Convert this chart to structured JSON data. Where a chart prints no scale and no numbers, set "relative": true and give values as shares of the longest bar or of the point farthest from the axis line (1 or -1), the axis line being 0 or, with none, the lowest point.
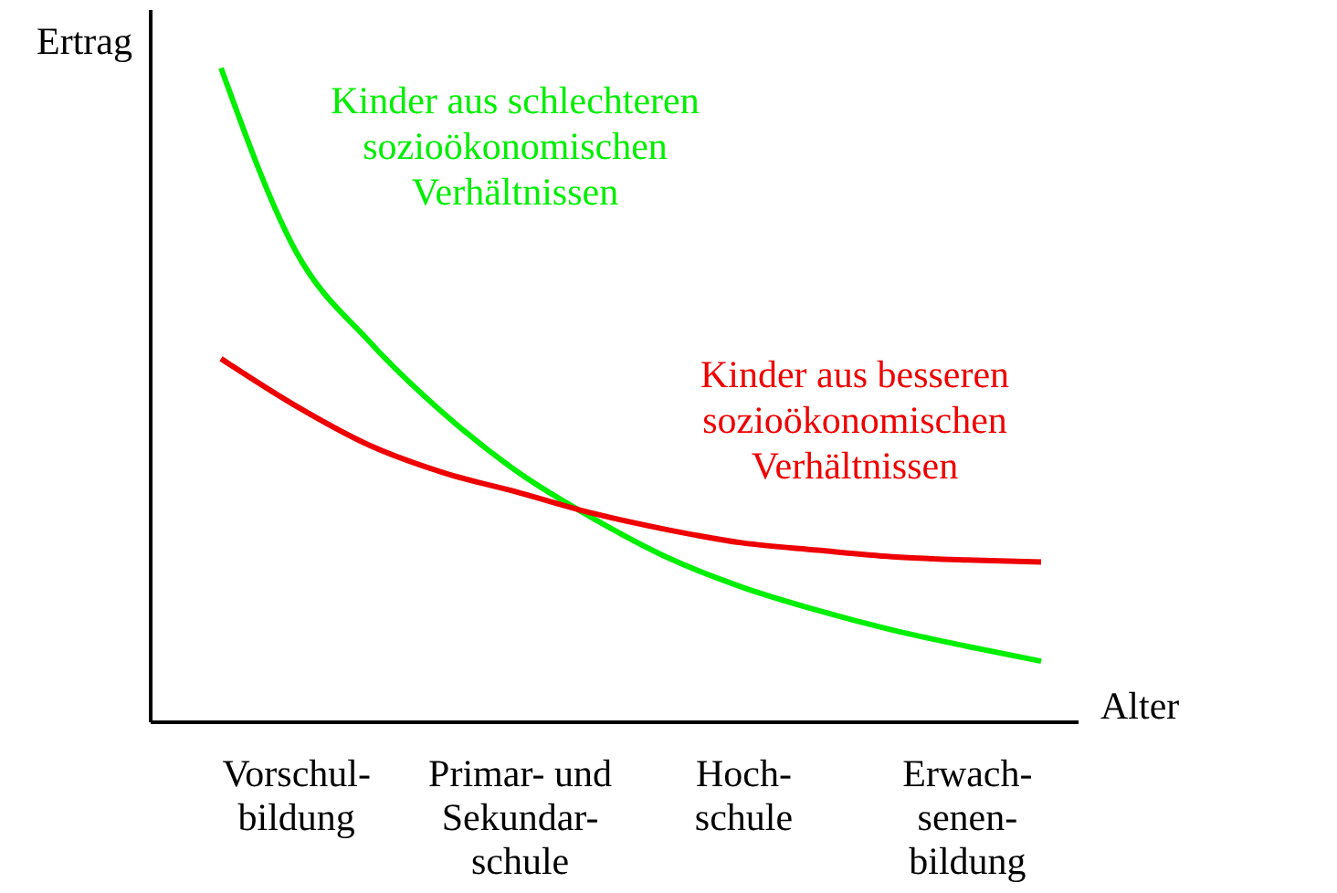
{
  "chart_data": {
    "type": "line",
    "relative": true,
    "xlabel": "Alter",
    "ylabel": "Ertrag",
    "grid": false,
    "categories": [
      null,
      "Vorschul-\nbildung",
      null,
      null,
      "Primar- und\nSekundar-\nschule",
      null,
      null,
      "Hoch-\nschule",
      null,
      null,
      "Erwach-\nsenen-\nbildung",
      null
    ],
    "series": [
      {
        "name": "Kinder aus schlechteren\nsozioökonomischen\nVerhältnissen",
        "color": "#00ee00",
        "values": [
          1,
          0.72,
          0.58,
          0.47,
          0.38,
          0.31,
          0.25,
          0.205,
          0.17,
          0.14,
          0.115,
          0.092
        ]
      },
      {
        "name": "Kinder aus besseren\nsozioökonomischen\nVerhältnissen",
        "color": "#ee0000",
        "values": [
          0.555,
          0.483,
          0.422,
          0.38,
          0.35,
          0.318,
          0.293,
          0.273,
          0.262,
          0.252,
          0.247,
          0.244
        ]
      }
    ]
  }
}
